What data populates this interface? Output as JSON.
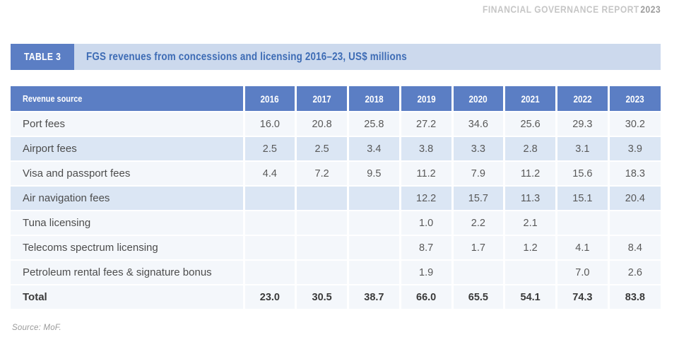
{
  "page_header": {
    "report_title": "FINANCIAL GOVERNANCE REPORT",
    "report_year": "2023"
  },
  "banner": {
    "label": "TABLE 3",
    "title": "FGS revenues from concessions and licensing 2016–23, US$ millions"
  },
  "table": {
    "columns": [
      "Revenue source",
      "2016",
      "2017",
      "2018",
      "2019",
      "2020",
      "2021",
      "2022",
      "2023"
    ],
    "rows": [
      {
        "label": "Port fees",
        "values": [
          "16.0",
          "20.8",
          "25.8",
          "27.2",
          "34.6",
          "25.6",
          "29.3",
          "30.2"
        ],
        "shaded": false,
        "bold": false
      },
      {
        "label": "Airport fees",
        "values": [
          "2.5",
          "2.5",
          "3.4",
          "3.8",
          "3.3",
          "2.8",
          "3.1",
          "3.9"
        ],
        "shaded": true,
        "bold": false
      },
      {
        "label": "Visa and passport fees",
        "values": [
          "4.4",
          "7.2",
          "9.5",
          "11.2",
          "7.9",
          "11.2",
          "15.6",
          "18.3"
        ],
        "shaded": false,
        "bold": false
      },
      {
        "label": "Air navigation fees",
        "values": [
          "",
          "",
          "",
          "12.2",
          "15.7",
          "11.3",
          "15.1",
          "20.4"
        ],
        "shaded": true,
        "bold": false
      },
      {
        "label": "Tuna licensing",
        "values": [
          "",
          "",
          "",
          "1.0",
          "2.2",
          "2.1",
          "",
          ""
        ],
        "shaded": false,
        "bold": false
      },
      {
        "label": "Telecoms spectrum licensing",
        "values": [
          "",
          "",
          "",
          "8.7",
          "1.7",
          "1.2",
          "4.1",
          "8.4"
        ],
        "shaded": false,
        "bold": false
      },
      {
        "label": "Petroleum rental fees & signature bonus",
        "values": [
          "",
          "",
          "",
          "1.9",
          "",
          "",
          "7.0",
          "2.6"
        ],
        "shaded": false,
        "bold": false
      },
      {
        "label": "Total",
        "values": [
          "23.0",
          "30.5",
          "38.7",
          "66.0",
          "65.5",
          "54.1",
          "74.3",
          "83.8"
        ],
        "shaded": false,
        "bold": true
      }
    ]
  },
  "footer": {
    "source": "Source: MoF."
  },
  "colors": {
    "header_blue": "#5b7ec4",
    "banner_strip_bg": "#ccd9ed",
    "banner_text_blue": "#3e6cb5",
    "row_shaded": "#dbe6f4",
    "row_plain": "#f4f7fb",
    "cell_text": "#585858",
    "running_header_gray": "#c6c6c6"
  }
}
